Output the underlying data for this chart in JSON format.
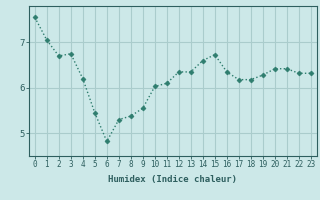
{
  "x": [
    0,
    1,
    2,
    3,
    4,
    5,
    6,
    7,
    8,
    9,
    10,
    11,
    12,
    13,
    14,
    15,
    16,
    17,
    18,
    19,
    20,
    21,
    22,
    23
  ],
  "y": [
    7.55,
    7.05,
    6.7,
    6.75,
    6.2,
    5.45,
    4.82,
    5.3,
    5.38,
    5.55,
    6.03,
    6.1,
    6.35,
    6.35,
    6.6,
    6.73,
    6.35,
    6.18,
    6.18,
    6.28,
    6.42,
    6.42,
    6.32,
    6.32
  ],
  "line_color": "#2e7d6e",
  "marker": "D",
  "marker_size": 2.5,
  "bg_color": "#cce8e8",
  "grid_color": "#aacccc",
  "xlabel": "Humidex (Indice chaleur)",
  "yticks": [
    5,
    6,
    7
  ],
  "xticks": [
    0,
    1,
    2,
    3,
    4,
    5,
    6,
    7,
    8,
    9,
    10,
    11,
    12,
    13,
    14,
    15,
    16,
    17,
    18,
    19,
    20,
    21,
    22,
    23
  ],
  "xlim": [
    -0.5,
    23.5
  ],
  "ylim": [
    4.5,
    7.8
  ],
  "tick_color": "#2e5f5f",
  "axis_color": "#2e5f5f",
  "label_fontsize": 6.5,
  "tick_fontsize": 5.5
}
